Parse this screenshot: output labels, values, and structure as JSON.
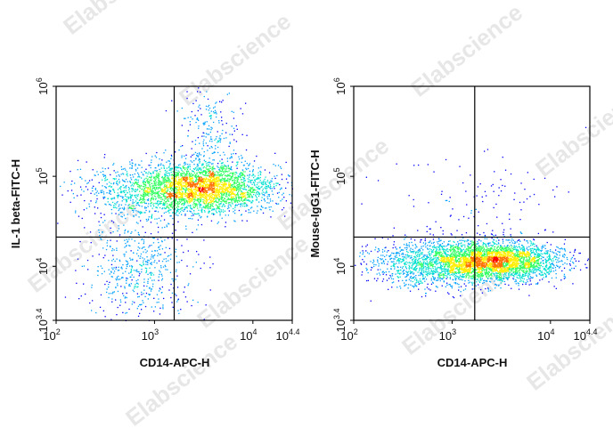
{
  "watermark": "Elabscience",
  "colors": {
    "density_scale": [
      "#0000ff",
      "#00a0ff",
      "#00e0d0",
      "#30ff60",
      "#ffee00",
      "#ff7000",
      "#ff0000"
    ],
    "gate_line": "#000000",
    "frame": "#000000"
  },
  "chart_data": [
    {
      "type": "scatter",
      "style": "density-dot-plot",
      "xlabel": "CD14-APC-H",
      "ylabel": "IL-1 beta-FITC-H",
      "x_scale": "log",
      "y_scale": "log",
      "xlim": [
        100,
        25119
      ],
      "ylim": [
        2512,
        1000000
      ],
      "x_ticks": [
        {
          "base": "10",
          "exp": "2"
        },
        {
          "base": "10",
          "exp": "3"
        },
        {
          "base": "10",
          "exp": "4"
        },
        {
          "base": "10",
          "exp": "4.4"
        }
      ],
      "y_ticks": [
        {
          "base": "10",
          "exp": "3.4"
        },
        {
          "base": "10",
          "exp": "4"
        },
        {
          "base": "10",
          "exp": "5"
        },
        {
          "base": "10",
          "exp": "6"
        }
      ],
      "quadrant_gate": {
        "x": 1585,
        "y": 21135
      },
      "populations": [
        {
          "center_x": 3160,
          "center_y": 75000,
          "spread_x_decades": 0.38,
          "spread_y_decades": 0.14,
          "weight": 0.62,
          "note": "main positive cluster (peak)"
        },
        {
          "center_x": 1100,
          "center_y": 72000,
          "spread_x_decades": 0.42,
          "spread_y_decades": 0.16,
          "weight": 0.2,
          "note": "lower-CD14 shoulder"
        },
        {
          "center_x": 3700,
          "center_y": 350000,
          "spread_x_decades": 0.16,
          "spread_y_decades": 0.22,
          "weight": 0.05,
          "note": "IL-1 beta high tail"
        },
        {
          "center_x": 700,
          "center_y": 10000,
          "spread_x_decades": 0.28,
          "spread_y_decades": 0.28,
          "weight": 0.13,
          "note": "low/low events"
        }
      ]
    },
    {
      "type": "scatter",
      "style": "density-dot-plot",
      "xlabel": "CD14-APC-H",
      "ylabel": "Mouse-IgG1-FITC-H",
      "x_scale": "log",
      "y_scale": "log",
      "xlim": [
        100,
        25119
      ],
      "ylim": [
        2512,
        1000000
      ],
      "x_ticks": [
        {
          "base": "10",
          "exp": "2"
        },
        {
          "base": "10",
          "exp": "3"
        },
        {
          "base": "10",
          "exp": "4"
        },
        {
          "base": "10",
          "exp": "4.4"
        }
      ],
      "y_ticks": [
        {
          "base": "10",
          "exp": "3.4"
        },
        {
          "base": "10",
          "exp": "4"
        },
        {
          "base": "10",
          "exp": "5"
        },
        {
          "base": "10",
          "exp": "6"
        }
      ],
      "quadrant_gate": {
        "x": 1698,
        "y": 21135
      },
      "populations": [
        {
          "center_x": 2900,
          "center_y": 11500,
          "spread_x_decades": 0.32,
          "spread_y_decades": 0.1,
          "weight": 0.6,
          "note": "main cluster (peak)"
        },
        {
          "center_x": 780,
          "center_y": 11000,
          "spread_x_decades": 0.4,
          "spread_y_decades": 0.13,
          "weight": 0.37,
          "note": "lower-CD14 shoulder"
        },
        {
          "center_x": 2000,
          "center_y": 45000,
          "spread_x_decades": 0.5,
          "spread_y_decades": 0.3,
          "weight": 0.03,
          "note": "sparse upper events"
        }
      ]
    }
  ]
}
